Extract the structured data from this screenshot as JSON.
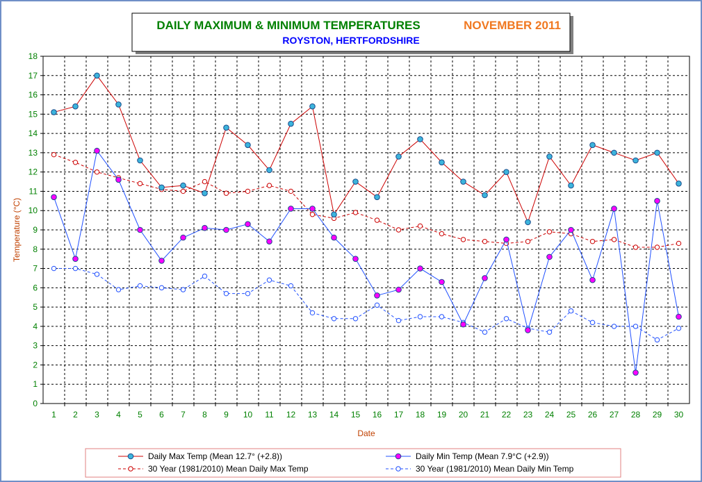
{
  "chart_data": {
    "type": "line",
    "title": "DAILY MAXIMUM &  MINIMUM  TEMPERATURES",
    "title_period": "NOVEMBER 2011",
    "subtitle": "ROYSTON, HERTFORDSHIRE",
    "xlabel": "Date",
    "ylabel": "Temperature (°C)",
    "ylim": [
      0,
      18
    ],
    "yticks": [
      "0",
      "1",
      "2",
      "3",
      "4",
      "5",
      "6",
      "7",
      "8",
      "9",
      "10",
      "11",
      "12",
      "13",
      "14",
      "15",
      "16",
      "17",
      "18"
    ],
    "x": [
      "1",
      "2",
      "3",
      "4",
      "5",
      "6",
      "7",
      "8",
      "9",
      "10",
      "11",
      "12",
      "13",
      "14",
      "15",
      "16",
      "17",
      "18",
      "19",
      "20",
      "21",
      "22",
      "23",
      "24",
      "25",
      "26",
      "27",
      "28",
      "29",
      "30"
    ],
    "grid": true,
    "legend_position": "bottom",
    "colors": {
      "title": "#008000",
      "period": "#f07820",
      "subtitle": "#0000ff",
      "axis_label": "#c04000",
      "tick_label": "#008000",
      "frame": "#6f8fc7"
    },
    "series": [
      {
        "name": "Daily Max Temp (Mean 12.7° (+2.8))",
        "color": "#cc0000",
        "style": "solid",
        "marker_fill": "#3cb4dc",
        "values": [
          15.1,
          15.4,
          17.0,
          15.5,
          12.6,
          11.2,
          11.3,
          10.9,
          14.3,
          13.4,
          12.1,
          14.5,
          15.4,
          9.8,
          11.5,
          10.7,
          12.8,
          13.7,
          12.5,
          11.5,
          10.8,
          12.0,
          9.4,
          12.8,
          11.3,
          13.4,
          13.0,
          12.6,
          13.0,
          11.4
        ]
      },
      {
        "name": "Daily Min Temp (Mean 7.9°C (+2.9))",
        "color": "#2050ff",
        "style": "solid",
        "marker_fill": "#ff00ff",
        "values": [
          10.7,
          7.5,
          13.1,
          11.6,
          9.0,
          7.4,
          8.6,
          9.1,
          9.0,
          9.3,
          8.4,
          10.1,
          10.1,
          8.6,
          7.5,
          5.6,
          5.9,
          7.0,
          6.3,
          4.1,
          6.5,
          8.5,
          3.8,
          7.6,
          9.0,
          6.4,
          10.1,
          1.6,
          10.5,
          4.5
        ]
      },
      {
        "name": "30 Year (1981/2010) Mean Daily Max Temp",
        "color": "#cc0000",
        "style": "dashed",
        "marker_fill": "#ffffff",
        "values": [
          12.9,
          12.5,
          12.0,
          11.7,
          11.4,
          11.1,
          11.0,
          11.5,
          10.9,
          11.0,
          11.3,
          11.0,
          9.8,
          9.6,
          9.9,
          9.5,
          9.0,
          9.2,
          8.8,
          8.5,
          8.4,
          8.3,
          8.4,
          8.9,
          8.8,
          8.4,
          8.5,
          8.1,
          8.1,
          8.3
        ]
      },
      {
        "name": "30 Year (1981/2010) Mean Daily Min Temp",
        "color": "#2050ff",
        "style": "dashed",
        "marker_fill": "#ffffff",
        "values": [
          7.0,
          7.0,
          6.7,
          5.9,
          6.1,
          6.0,
          5.9,
          6.6,
          5.7,
          5.7,
          6.4,
          6.1,
          4.7,
          4.4,
          4.4,
          5.1,
          4.3,
          4.5,
          4.5,
          4.2,
          3.7,
          4.4,
          3.9,
          3.7,
          4.8,
          4.2,
          4.0,
          4.0,
          3.3,
          3.9
        ]
      }
    ]
  }
}
